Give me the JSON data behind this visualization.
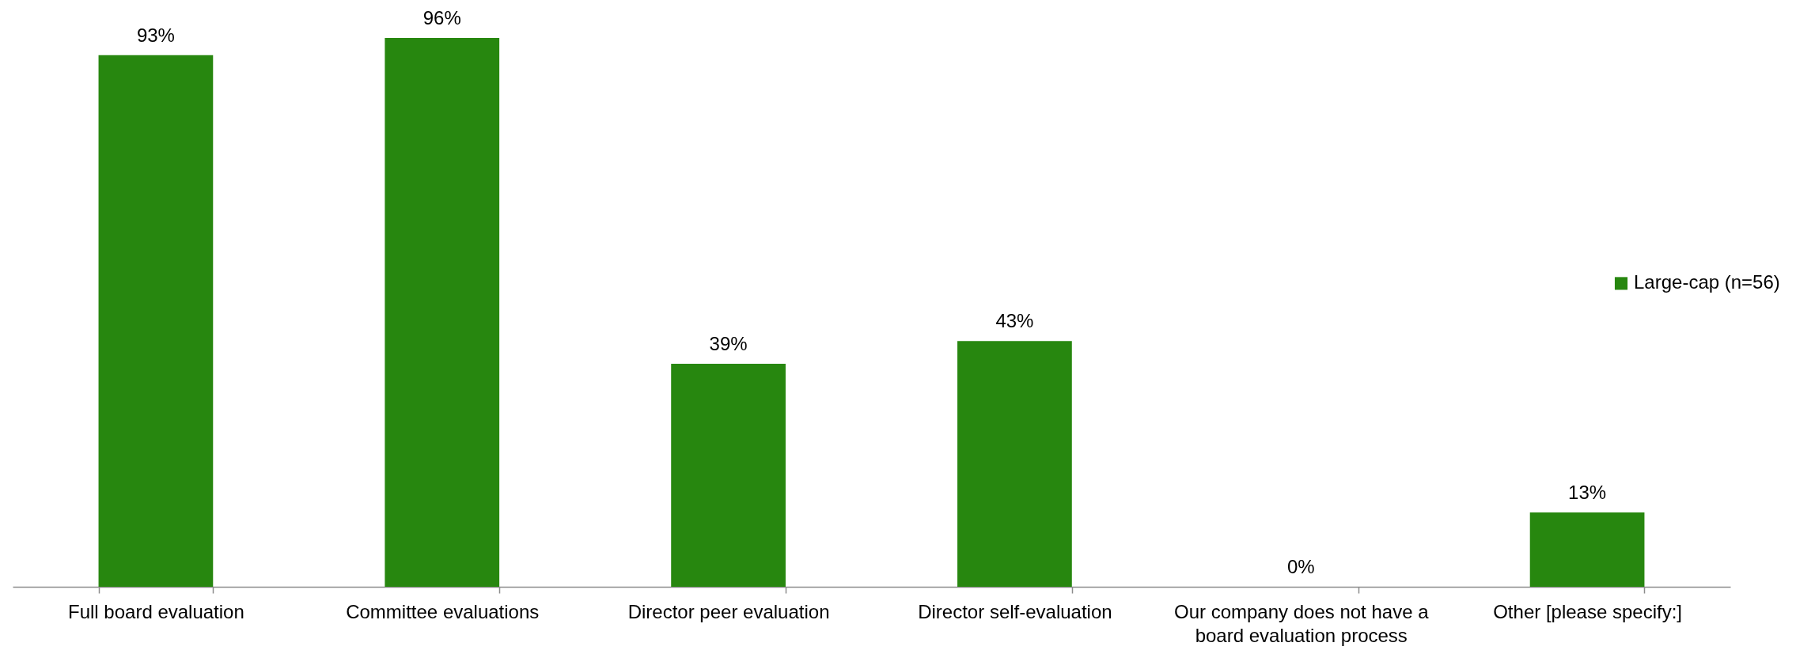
{
  "chart_data": {
    "type": "bar",
    "categories": [
      "Full board evaluation",
      "Committee evaluations",
      "Director peer evaluation",
      "Director self-evaluation",
      "Our company does not have a board evaluation process",
      "Other [please specify:]"
    ],
    "series": [
      {
        "name": "Large-cap (n=56)",
        "color": "#27870f",
        "values": [
          93,
          96,
          39,
          43,
          0,
          13
        ],
        "value_labels": [
          "93%",
          "96%",
          "39%",
          "43%",
          "0%",
          "13%"
        ]
      }
    ],
    "legend": "right"
  }
}
